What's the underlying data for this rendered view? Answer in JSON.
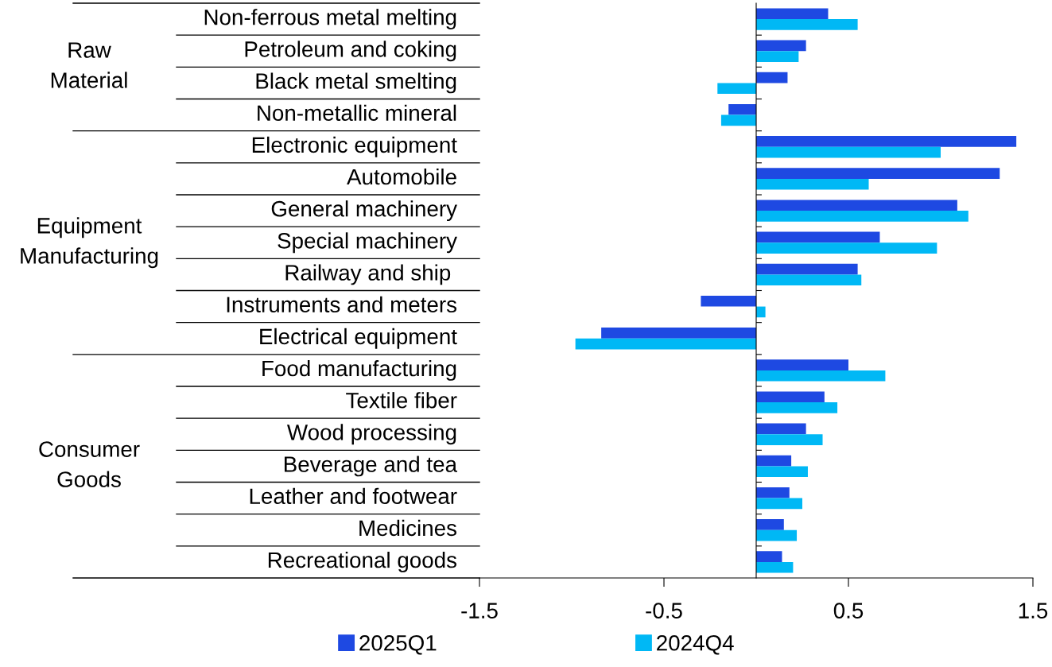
{
  "chart_data": {
    "type": "bar",
    "orientation": "horizontal",
    "categories": [
      "Non-ferrous metal melting",
      "Petroleum and coking",
      "Black metal smelting",
      "Non-metallic mineral",
      "Electronic equipment",
      "Automobile",
      "General machinery",
      "Special machinery",
      "Railway and ship ",
      "Instruments and meters",
      "Electrical equipment",
      "Food manufacturing",
      "Textile fiber",
      "Wood processing",
      "Beverage and tea",
      "Leather and footwear",
      "Medicines",
      "Recreational goods"
    ],
    "series": [
      {
        "name": "2025Q1",
        "color": "#1e49e2",
        "values": [
          0.39,
          0.27,
          0.17,
          -0.15,
          1.41,
          1.32,
          1.09,
          0.67,
          0.55,
          -0.3,
          -0.84,
          0.5,
          0.37,
          0.27,
          0.19,
          0.18,
          0.15,
          0.14
        ]
      },
      {
        "name": "2024Q4",
        "color": "#00b8f5",
        "values": [
          0.55,
          0.23,
          -0.21,
          -0.19,
          1.0,
          0.61,
          1.15,
          0.98,
          0.57,
          0.05,
          -0.98,
          0.7,
          0.44,
          0.36,
          0.28,
          0.25,
          0.22,
          0.2
        ]
      }
    ],
    "xlim": [
      -1.5,
      1.5
    ],
    "xticks": [
      {
        "value": -1.5,
        "label": "-1.5"
      },
      {
        "value": -0.5,
        "label": "-0.5"
      },
      0.5,
      1.5
    ],
    "annotations": [
      "Raw\nMaterial",
      "Equipment\nManufacturing",
      "Consumer\nGoods"
    ],
    "legend": "bottom",
    "grid": false
  }
}
